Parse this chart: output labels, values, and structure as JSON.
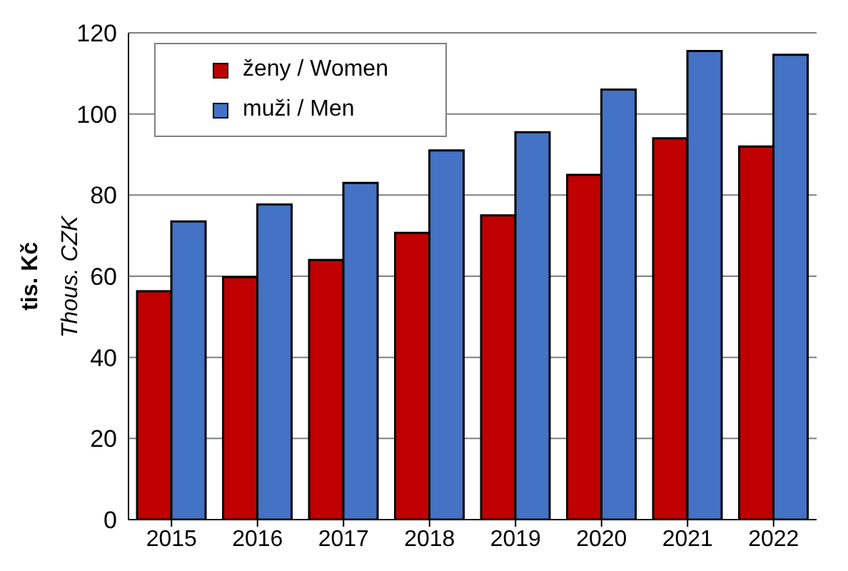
{
  "chart_data": {
    "type": "bar",
    "ylabel": "tis. Kč",
    "annotations": [
      "Thous. CZK"
    ],
    "categories": [
      "2015",
      "2016",
      "2017",
      "2018",
      "2019",
      "2020",
      "2021",
      "2022"
    ],
    "series": [
      {
        "name": "ženy / Women",
        "color": "#c00000",
        "values": [
          56.3,
          59.8,
          64,
          70.7,
          75,
          85,
          94,
          92
        ]
      },
      {
        "name": "muži / Men",
        "color": "#4472c4",
        "values": [
          73.5,
          77.7,
          83,
          91,
          95.5,
          106,
          115.5,
          114.6
        ]
      }
    ],
    "ylim": [
      0,
      120
    ],
    "yticks": [
      0,
      20,
      40,
      60,
      80,
      100,
      120
    ],
    "grid": "y",
    "legend": "top left"
  }
}
